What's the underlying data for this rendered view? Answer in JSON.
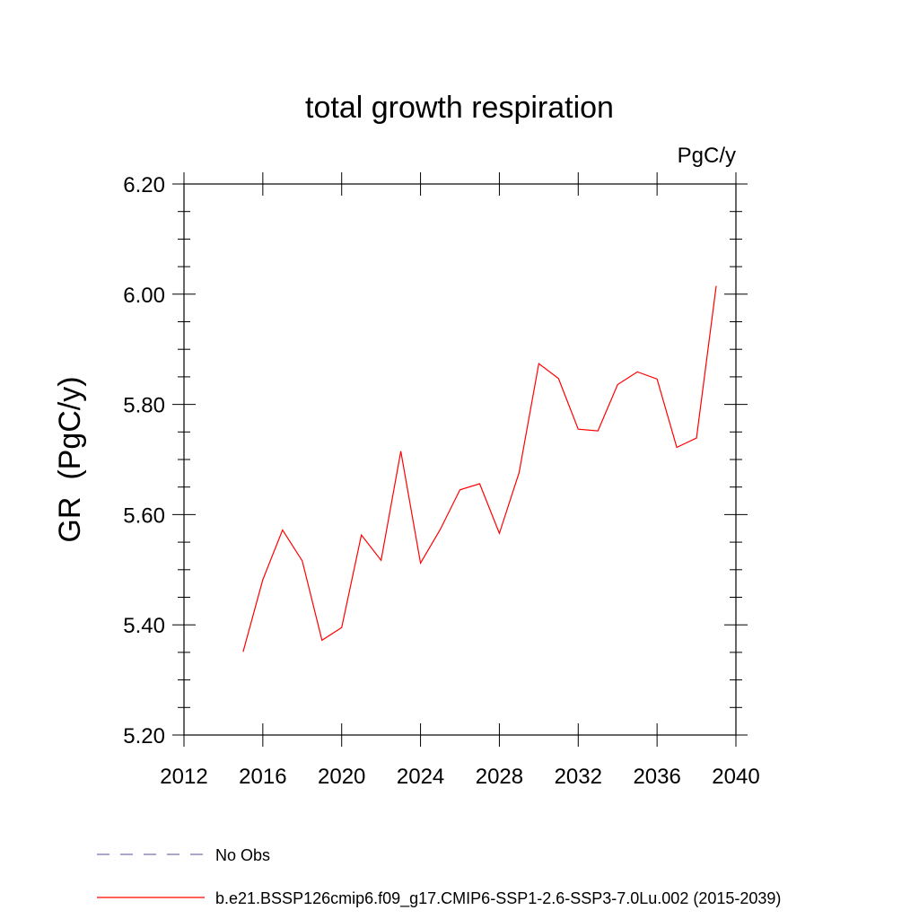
{
  "chart_data": {
    "type": "line",
    "title": "total growth respiration",
    "units_label": "PgC/y",
    "xlabel": "",
    "ylabel": "GR  (PgC/y)",
    "xlim": [
      2012,
      2040
    ],
    "ylim": [
      5.2,
      6.2
    ],
    "x_ticks": [
      2012,
      2016,
      2020,
      2024,
      2028,
      2032,
      2036,
      2040
    ],
    "x_tick_labels": [
      "2012",
      "2016",
      "2020",
      "2024",
      "2028",
      "2032",
      "2036",
      "2040"
    ],
    "y_ticks": [
      5.2,
      5.4,
      5.6,
      5.8,
      6.0,
      6.2
    ],
    "y_tick_labels": [
      "5.20",
      "5.40",
      "5.60",
      "5.80",
      "6.00",
      "6.20"
    ],
    "grid": false,
    "legend_position": "bottom",
    "series": [
      {
        "name": "No Obs",
        "color": "#7b6fb0",
        "dash": "dashed",
        "x": [],
        "y": []
      },
      {
        "name": "b.e21.BSSP126cmip6.f09_g17.CMIP6-SSP1-2.6-SSP3-7.0Lu.002 (2015-2039)",
        "color": "#ff0000",
        "dash": "solid",
        "x": [
          2015,
          2016,
          2017,
          2018,
          2019,
          2020,
          2021,
          2022,
          2023,
          2024,
          2025,
          2026,
          2027,
          2028,
          2029,
          2030,
          2031,
          2032,
          2033,
          2034,
          2035,
          2036,
          2037,
          2038,
          2039
        ],
        "y": [
          5.351,
          5.482,
          5.572,
          5.516,
          5.372,
          5.395,
          5.563,
          5.517,
          5.715,
          5.512,
          5.573,
          5.645,
          5.656,
          5.566,
          5.676,
          5.874,
          5.847,
          5.755,
          5.752,
          5.836,
          5.859,
          5.846,
          5.722,
          5.739,
          6.015
        ]
      }
    ]
  }
}
